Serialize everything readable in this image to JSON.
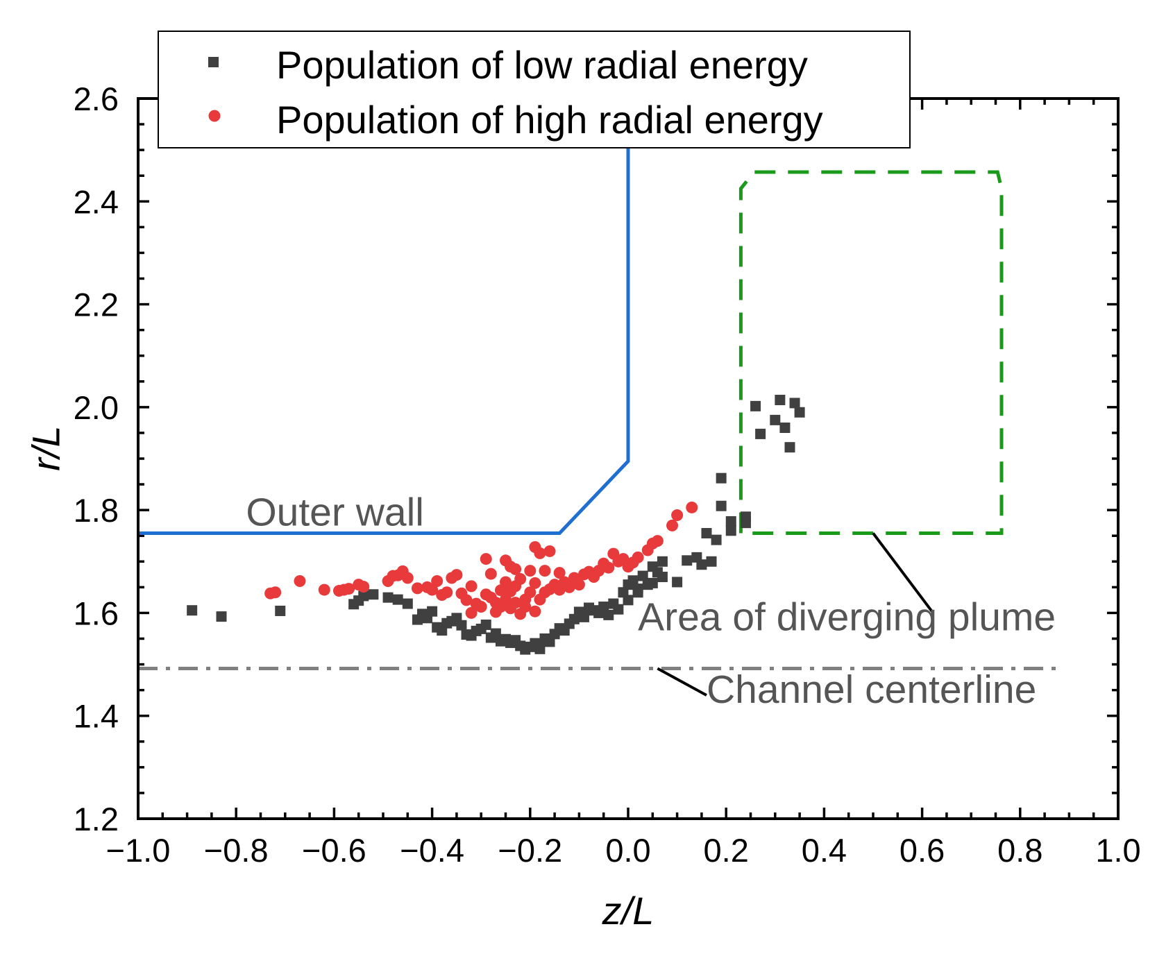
{
  "chart_data": {
    "type": "scatter",
    "xlabel": "z/L",
    "ylabel": "r/L",
    "xlim": [
      -1.0,
      1.0
    ],
    "ylim": [
      1.2,
      2.6
    ],
    "x_ticks": [
      -1.0,
      -0.8,
      -0.6,
      -0.4,
      -0.2,
      0.0,
      0.2,
      0.4,
      0.6,
      0.8,
      1.0
    ],
    "x_tick_labels": [
      "−1.0",
      "−0.8",
      "−0.6",
      "−0.4",
      "−0.2",
      "0.0",
      "0.2",
      "0.4",
      "0.6",
      "0.8",
      "1.0"
    ],
    "y_ticks": [
      1.2,
      1.4,
      1.6,
      1.8,
      2.0,
      2.2,
      2.4,
      2.6
    ],
    "y_tick_labels": [
      "1.2",
      "1.4",
      "1.6",
      "1.8",
      "2.0",
      "2.2",
      "2.4",
      "2.6"
    ],
    "legend": {
      "position": "top-left",
      "entries": [
        "Population of low radial energy",
        "Population of high radial energy"
      ]
    },
    "series": [
      {
        "name": "Population of low radial energy",
        "marker": "square",
        "color": "#404040",
        "points": [
          [
            -0.89,
            1.605
          ],
          [
            -0.83,
            1.593
          ],
          [
            -0.71,
            1.604
          ],
          [
            -0.56,
            1.617
          ],
          [
            -0.55,
            1.624
          ],
          [
            -0.54,
            1.633
          ],
          [
            -0.52,
            1.636
          ],
          [
            -0.49,
            1.63
          ],
          [
            -0.47,
            1.626
          ],
          [
            -0.45,
            1.618
          ],
          [
            -0.43,
            1.587
          ],
          [
            -0.42,
            1.598
          ],
          [
            -0.41,
            1.59
          ],
          [
            -0.4,
            1.603
          ],
          [
            -0.39,
            1.572
          ],
          [
            -0.38,
            1.566
          ],
          [
            -0.37,
            1.58
          ],
          [
            -0.36,
            1.584
          ],
          [
            -0.35,
            1.59
          ],
          [
            -0.34,
            1.576
          ],
          [
            -0.33,
            1.558
          ],
          [
            -0.32,
            1.556
          ],
          [
            -0.31,
            1.565
          ],
          [
            -0.3,
            1.569
          ],
          [
            -0.29,
            1.577
          ],
          [
            -0.28,
            1.552
          ],
          [
            -0.27,
            1.56
          ],
          [
            -0.26,
            1.545
          ],
          [
            -0.25,
            1.549
          ],
          [
            -0.24,
            1.542
          ],
          [
            -0.23,
            1.547
          ],
          [
            -0.22,
            1.536
          ],
          [
            -0.21,
            1.529
          ],
          [
            -0.2,
            1.534
          ],
          [
            -0.19,
            1.541
          ],
          [
            -0.18,
            1.53
          ],
          [
            -0.17,
            1.55
          ],
          [
            -0.16,
            1.544
          ],
          [
            -0.15,
            1.559
          ],
          [
            -0.14,
            1.57
          ],
          [
            -0.13,
            1.566
          ],
          [
            -0.12,
            1.579
          ],
          [
            -0.11,
            1.588
          ],
          [
            -0.1,
            1.602
          ],
          [
            -0.09,
            1.592
          ],
          [
            -0.08,
            1.61
          ],
          [
            -0.07,
            1.605
          ],
          [
            -0.06,
            1.6
          ],
          [
            -0.05,
            1.612
          ],
          [
            -0.04,
            1.596
          ],
          [
            -0.03,
            1.618
          ],
          [
            -0.02,
            1.607
          ],
          [
            -0.01,
            1.64
          ],
          [
            0.0,
            1.625
          ],
          [
            0.0,
            1.655
          ],
          [
            0.01,
            1.663
          ],
          [
            0.02,
            1.64
          ],
          [
            0.02,
            1.647
          ],
          [
            0.03,
            1.672
          ],
          [
            0.04,
            1.655
          ],
          [
            0.05,
            1.658
          ],
          [
            0.05,
            1.69
          ],
          [
            0.06,
            1.679
          ],
          [
            0.07,
            1.67
          ],
          [
            0.07,
            1.7
          ],
          [
            0.1,
            1.66
          ],
          [
            0.12,
            1.702
          ],
          [
            0.14,
            1.708
          ],
          [
            0.15,
            1.694
          ],
          [
            0.16,
            1.755
          ],
          [
            0.17,
            1.7
          ],
          [
            0.18,
            1.742
          ],
          [
            0.19,
            1.808
          ],
          [
            0.19,
            1.862
          ],
          [
            0.21,
            1.778
          ],
          [
            0.21,
            1.76
          ],
          [
            0.24,
            1.787
          ],
          [
            0.24,
            1.775
          ],
          [
            0.26,
            2.002
          ],
          [
            0.27,
            1.948
          ],
          [
            0.3,
            1.975
          ],
          [
            0.31,
            2.014
          ],
          [
            0.32,
            1.96
          ],
          [
            0.33,
            1.922
          ],
          [
            0.34,
            2.008
          ],
          [
            0.35,
            1.99
          ]
        ]
      },
      {
        "name": "Population of high radial energy",
        "marker": "circle",
        "color": "#e8393b",
        "points": [
          [
            -0.73,
            1.638
          ],
          [
            -0.72,
            1.64
          ],
          [
            -0.67,
            1.662
          ],
          [
            -0.62,
            1.645
          ],
          [
            -0.59,
            1.643
          ],
          [
            -0.58,
            1.645
          ],
          [
            -0.57,
            1.647
          ],
          [
            -0.55,
            1.655
          ],
          [
            -0.54,
            1.651
          ],
          [
            -0.49,
            1.662
          ],
          [
            -0.48,
            1.672
          ],
          [
            -0.47,
            1.673
          ],
          [
            -0.46,
            1.681
          ],
          [
            -0.45,
            1.668
          ],
          [
            -0.43,
            1.648
          ],
          [
            -0.41,
            1.65
          ],
          [
            -0.4,
            1.645
          ],
          [
            -0.39,
            1.662
          ],
          [
            -0.38,
            1.635
          ],
          [
            -0.37,
            1.64
          ],
          [
            -0.36,
            1.668
          ],
          [
            -0.35,
            1.674
          ],
          [
            -0.34,
            1.638
          ],
          [
            -0.33,
            1.625
          ],
          [
            -0.32,
            1.6
          ],
          [
            -0.32,
            1.652
          ],
          [
            -0.31,
            1.618
          ],
          [
            -0.3,
            1.612
          ],
          [
            -0.29,
            1.705
          ],
          [
            -0.29,
            1.636
          ],
          [
            -0.28,
            1.63
          ],
          [
            -0.28,
            1.676
          ],
          [
            -0.27,
            1.62
          ],
          [
            -0.27,
            1.602
          ],
          [
            -0.26,
            1.644
          ],
          [
            -0.26,
            1.612
          ],
          [
            -0.25,
            1.626
          ],
          [
            -0.25,
            1.702
          ],
          [
            -0.25,
            1.66
          ],
          [
            -0.24,
            1.69
          ],
          [
            -0.24,
            1.642
          ],
          [
            -0.24,
            1.609
          ],
          [
            -0.23,
            1.685
          ],
          [
            -0.23,
            1.652
          ],
          [
            -0.23,
            1.62
          ],
          [
            -0.22,
            1.666
          ],
          [
            -0.22,
            1.598
          ],
          [
            -0.21,
            1.626
          ],
          [
            -0.21,
            1.612
          ],
          [
            -0.2,
            1.682
          ],
          [
            -0.2,
            1.64
          ],
          [
            -0.19,
            1.728
          ],
          [
            -0.19,
            1.658
          ],
          [
            -0.19,
            1.603
          ],
          [
            -0.18,
            1.716
          ],
          [
            -0.18,
            1.626
          ],
          [
            -0.17,
            1.64
          ],
          [
            -0.17,
            1.682
          ],
          [
            -0.16,
            1.72
          ],
          [
            -0.16,
            1.646
          ],
          [
            -0.15,
            1.655
          ],
          [
            -0.14,
            1.645
          ],
          [
            -0.14,
            1.678
          ],
          [
            -0.13,
            1.66
          ],
          [
            -0.12,
            1.65
          ],
          [
            -0.11,
            1.668
          ],
          [
            -0.1,
            1.655
          ],
          [
            -0.09,
            1.675
          ],
          [
            -0.08,
            1.68
          ],
          [
            -0.07,
            1.67
          ],
          [
            -0.06,
            1.682
          ],
          [
            -0.05,
            1.696
          ],
          [
            -0.04,
            1.688
          ],
          [
            -0.03,
            1.715
          ],
          [
            -0.02,
            1.7
          ],
          [
            -0.01,
            1.705
          ],
          [
            0.0,
            1.69
          ],
          [
            0.01,
            1.698
          ],
          [
            0.02,
            1.708
          ],
          [
            0.04,
            1.722
          ],
          [
            0.05,
            1.735
          ],
          [
            0.06,
            1.74
          ],
          [
            0.09,
            1.77
          ],
          [
            0.1,
            1.79
          ],
          [
            0.13,
            1.805
          ]
        ]
      }
    ],
    "lines": [
      {
        "name": "Outer wall",
        "style": "solid",
        "color": "#1f6fd1",
        "points": [
          [
            -1.0,
            1.755
          ],
          [
            -0.14,
            1.755
          ],
          [
            0.0,
            1.895
          ],
          [
            0.0,
            2.6
          ]
        ]
      },
      {
        "name": "Channel centerline",
        "style": "dash-dot",
        "color": "#808080",
        "points": [
          [
            -1.0,
            1.492
          ],
          [
            0.88,
            1.492
          ]
        ]
      },
      {
        "name": "Area of diverging plume",
        "style": "dashed",
        "color": "#1a9a1a",
        "points": [
          [
            0.23,
            1.755
          ],
          [
            0.23,
            2.425
          ],
          [
            0.257,
            2.457
          ],
          [
            0.754,
            2.457
          ],
          [
            0.762,
            2.425
          ],
          [
            0.762,
            1.755
          ],
          [
            0.23,
            1.755
          ]
        ]
      }
    ],
    "annotations": [
      {
        "text": "Outer wall",
        "x": -0.78,
        "y": 1.77
      },
      {
        "text": "Area of diverging plume",
        "x": 0.02,
        "y": 1.566
      },
      {
        "text": "Channel centerline",
        "x": 0.16,
        "y": 1.425
      }
    ]
  }
}
